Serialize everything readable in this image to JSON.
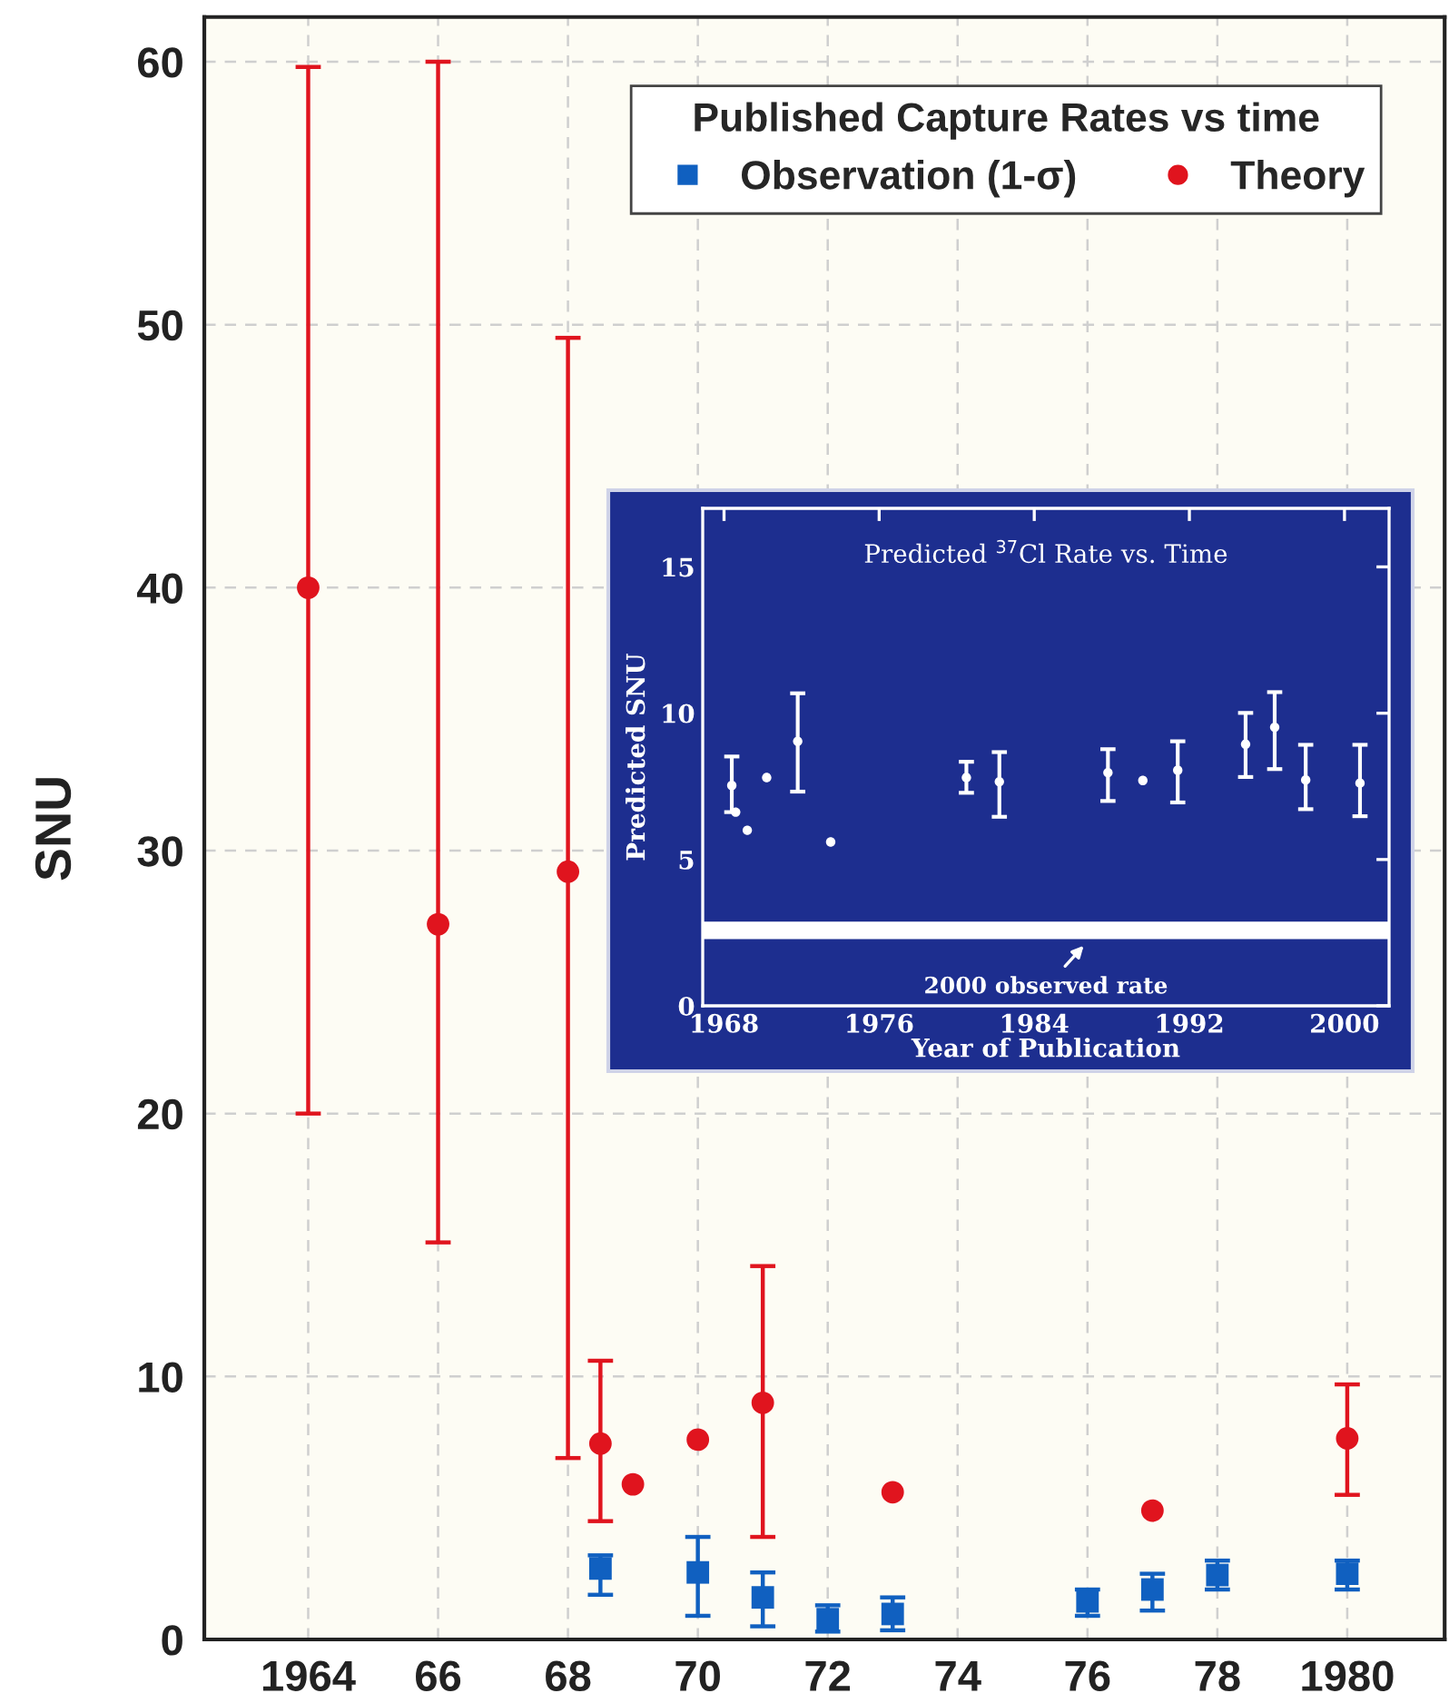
{
  "chart_data": [
    {
      "type": "scatter",
      "ylabel": "SNU",
      "legend_title": "Published Capture Rates vs time",
      "legend": "top right",
      "grid": true,
      "xlim": [
        1962.4,
        1981.5
      ],
      "ylim": [
        0,
        61.7
      ],
      "xticks": [
        {
          "value": 1964,
          "label": "1964"
        },
        {
          "value": 1966,
          "label": "66"
        },
        {
          "value": 1968,
          "label": "68"
        },
        {
          "value": 1970,
          "label": "70"
        },
        {
          "value": 1972,
          "label": "72"
        },
        {
          "value": 1974,
          "label": "74"
        },
        {
          "value": 1976,
          "label": "76"
        },
        {
          "value": 1978,
          "label": "78"
        },
        {
          "value": 1980,
          "label": "1980"
        }
      ],
      "yticks": [
        0,
        10,
        20,
        30,
        40,
        50,
        60
      ],
      "series": [
        {
          "name": "Observation (1-σ)",
          "color": "#1060c0",
          "marker": "square",
          "x": [
            1968.5,
            1970,
            1971,
            1972,
            1973,
            1976,
            1977,
            1978,
            1980
          ],
          "values": [
            2.7,
            2.55,
            1.6,
            0.77,
            0.97,
            1.45,
            1.9,
            2.45,
            2.5
          ],
          "errors": [
            [
              1.7,
              3.2
            ],
            [
              0.9,
              3.9
            ],
            [
              0.5,
              2.55
            ],
            [
              0.3,
              1.3
            ],
            [
              0.35,
              1.6
            ],
            [
              0.9,
              1.9
            ],
            [
              1.1,
              2.5
            ],
            [
              1.9,
              3.0
            ],
            [
              1.9,
              3.0
            ]
          ]
        },
        {
          "name": "Theory",
          "color": "#e0141e",
          "marker": "circle",
          "x": [
            1964,
            1966,
            1968,
            1968.5,
            1969,
            1970,
            1971,
            1973,
            1977,
            1980
          ],
          "values": [
            40,
            27.2,
            29.2,
            7.45,
            5.9,
            7.6,
            9.0,
            5.6,
            4.9,
            7.65
          ],
          "errors": [
            [
              20,
              59.8
            ],
            [
              15.1,
              60
            ],
            [
              6.9,
              49.5
            ],
            [
              4.5,
              10.6
            ],
            null,
            null,
            [
              3.9,
              14.2
            ],
            null,
            null,
            [
              5.5,
              9.7
            ]
          ]
        }
      ]
    },
    {
      "type": "scatter",
      "title": "Predicted $^{37}$Cl Rate vs. Time",
      "xlabel": "Year of Publication",
      "ylabel": "Predicted SNU",
      "grid": false,
      "xlim": [
        1966.9,
        2002.3
      ],
      "ylim": [
        0,
        17
      ],
      "xticks": [
        1968,
        1976,
        1984,
        1992,
        2000
      ],
      "yticks": [
        0,
        5,
        10,
        15
      ],
      "bands": [
        {
          "axis": "y",
          "from": 2.28,
          "to": 2.88,
          "label": "2000 observed rate",
          "color": "#ffffff"
        }
      ],
      "series": [
        {
          "color": "#ffffff",
          "marker": "circle",
          "x": [
            1968.4,
            1968.6,
            1969.2,
            1970.2,
            1971.8,
            1973.5,
            1980.5,
            1982.2,
            1987.8,
            1989.6,
            1991.4,
            1994.9,
            1996.4,
            1998.0,
            2000.8
          ],
          "values": [
            7.53,
            6.62,
            6.0,
            7.8,
            9.04,
            5.6,
            7.8,
            7.66,
            7.97,
            7.7,
            8.05,
            8.94,
            9.52,
            7.72,
            7.61
          ],
          "errors": [
            [
              6.62,
              8.52
            ],
            null,
            null,
            null,
            [
              7.32,
              10.68
            ],
            null,
            [
              7.28,
              8.34
            ],
            [
              6.46,
              8.67
            ],
            [
              7.0,
              8.77
            ],
            null,
            [
              6.95,
              9.04
            ],
            [
              7.82,
              10.01
            ],
            [
              8.09,
              10.72
            ],
            [
              6.72,
              8.92
            ],
            [
              6.48,
              8.92
            ]
          ]
        }
      ]
    }
  ]
}
